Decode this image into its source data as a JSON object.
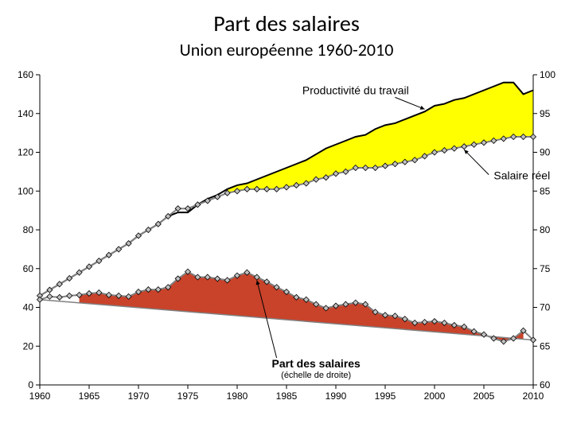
{
  "title": "Part des salaires",
  "subtitle": "Union européenne 1960-2010",
  "chart": {
    "type": "line+area",
    "background_color": "#ffffff",
    "plot_border_color": "#000000",
    "axis_tick_color": "#000000",
    "axis_label_color": "#000000",
    "axis_label_fontsize": 12,
    "annotation_fontsize": 14,
    "x": {
      "min": 1960,
      "max": 2010,
      "tick_step": 5,
      "ticks": [
        1960,
        1965,
        1970,
        1975,
        1980,
        1985,
        1990,
        1995,
        2000,
        2005,
        2010
      ]
    },
    "y_left": {
      "min": 0,
      "max": 160,
      "tick_step": 20,
      "ticks": [
        0,
        20,
        40,
        60,
        80,
        100,
        120,
        140,
        160
      ]
    },
    "y_right": {
      "min": 60,
      "max": 100,
      "tick_step": 5,
      "ticks": [
        60,
        65,
        70,
        75,
        80,
        85,
        90,
        95,
        100
      ]
    },
    "years": [
      1960,
      1961,
      1962,
      1963,
      1964,
      1965,
      1966,
      1967,
      1968,
      1969,
      1970,
      1971,
      1972,
      1973,
      1974,
      1975,
      1976,
      1977,
      1978,
      1979,
      1980,
      1981,
      1982,
      1983,
      1984,
      1985,
      1986,
      1987,
      1988,
      1989,
      1990,
      1991,
      1992,
      1993,
      1994,
      1995,
      1996,
      1997,
      1998,
      1999,
      2000,
      2001,
      2002,
      2003,
      2004,
      2005,
      2006,
      2007,
      2008,
      2009,
      2010
    ],
    "productivity": {
      "color": "#000000",
      "line_width": 2,
      "values": [
        46,
        49,
        52,
        55,
        58,
        61,
        64,
        67,
        70,
        73,
        77,
        80,
        83,
        87,
        89,
        89,
        93,
        96,
        98,
        101,
        103,
        104,
        106,
        108,
        110,
        112,
        114,
        116,
        119,
        122,
        124,
        126,
        128,
        129,
        132,
        134,
        135,
        137,
        139,
        141,
        144,
        145,
        147,
        148,
        150,
        152,
        154,
        156,
        156,
        150,
        152
      ]
    },
    "real_wage": {
      "line_color": "#808080",
      "line_width": 2,
      "marker_fill": "#c0c0c0",
      "marker_stroke": "#000000",
      "marker_size": 3.5,
      "values": [
        46,
        49,
        52,
        55,
        58,
        61,
        64,
        67,
        70,
        73,
        77,
        80,
        83,
        87,
        91,
        91,
        93,
        95,
        97,
        99,
        100,
        101,
        101,
        101,
        101,
        102,
        103,
        104,
        106,
        107,
        109,
        110,
        112,
        112,
        112,
        113,
        114,
        115,
        116,
        118,
        120,
        121,
        122,
        123,
        124,
        125,
        126,
        127,
        128,
        128,
        128
      ]
    },
    "wage_share": {
      "axis": "right",
      "line_color": "#808080",
      "line_width": 2,
      "marker_fill": "#c0c0c0",
      "marker_stroke": "#000000",
      "marker_size": 3.5,
      "baseline_color": "#808080",
      "baseline_width": 1.5,
      "values": [
        71.0,
        71.4,
        71.3,
        71.5,
        71.6,
        71.8,
        71.9,
        71.6,
        71.5,
        71.4,
        72.0,
        72.3,
        72.3,
        72.6,
        73.7,
        74.6,
        73.9,
        73.9,
        73.7,
        73.5,
        74.1,
        74.5,
        73.9,
        73.3,
        72.6,
        72.0,
        71.3,
        71.0,
        70.4,
        69.9,
        70.2,
        70.4,
        70.6,
        70.4,
        69.4,
        69.0,
        68.9,
        68.5,
        68.0,
        68.1,
        68.2,
        68.0,
        67.7,
        67.5,
        66.9,
        66.5,
        66.0,
        65.6,
        66.0,
        67.0,
        65.8
      ]
    },
    "fill_above_colors": {
      "yellow": "#ffff00",
      "red": "#c9422a"
    },
    "annotations": {
      "productivity": "Productivité du travail",
      "real_wage": "Salaire réel",
      "wage_share": "Part des salaires",
      "wage_share_sub": "(échelle de droite)"
    }
  }
}
